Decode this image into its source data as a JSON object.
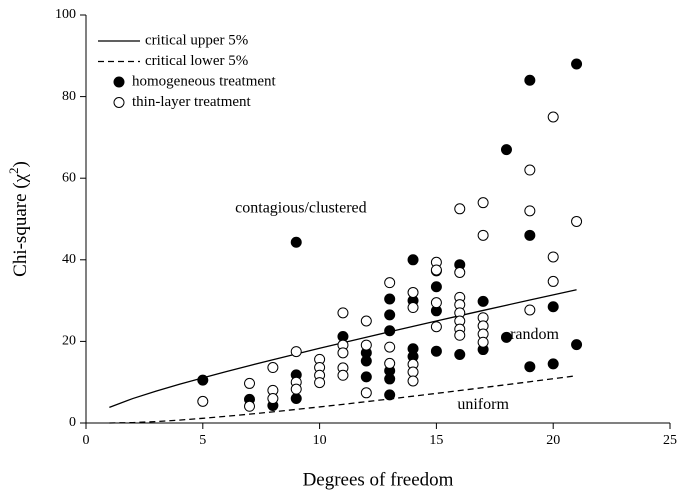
{
  "chart_data": {
    "type": "scatter",
    "xlabel": "Degrees of freedom",
    "ylabel": {
      "text": "Chi-square (χ",
      "sup": "2",
      "end": ")"
    },
    "xlim": [
      0,
      25
    ],
    "xticks": [
      0,
      5,
      10,
      15,
      20,
      25
    ],
    "ylim": [
      0,
      100
    ],
    "yticks": [
      0,
      20,
      40,
      60,
      80,
      100
    ],
    "legend": "upper left",
    "annotations": [
      {
        "text": "contagious/clustered",
        "x": 9.2,
        "y": 52.5
      },
      {
        "text": "random",
        "x": 19.2,
        "y": 21.5
      },
      {
        "text": "uniform",
        "x": 17.0,
        "y": 4.3
      }
    ],
    "series": [
      {
        "name": "critical upper 5%",
        "mark": "line",
        "dash": false,
        "color": "#000000",
        "x": [
          1,
          2,
          3,
          4,
          5,
          6,
          7,
          8,
          9,
          10,
          11,
          12,
          13,
          14,
          15,
          16,
          17,
          18,
          19,
          20,
          21
        ],
        "values": [
          3.84,
          5.99,
          7.81,
          9.49,
          11.07,
          12.59,
          14.07,
          15.51,
          16.92,
          18.31,
          19.68,
          21.03,
          22.36,
          23.68,
          25.0,
          26.3,
          27.59,
          28.87,
          30.14,
          31.41,
          32.67
        ]
      },
      {
        "name": "critical lower 5%",
        "mark": "line",
        "dash": true,
        "color": "#000000",
        "x": [
          1,
          2,
          3,
          4,
          5,
          6,
          7,
          8,
          9,
          10,
          11,
          12,
          13,
          14,
          15,
          16,
          17,
          18,
          19,
          20,
          21
        ],
        "values": [
          0.004,
          0.1,
          0.35,
          0.71,
          1.15,
          1.64,
          2.17,
          2.73,
          3.33,
          3.94,
          4.57,
          5.23,
          5.89,
          6.57,
          7.26,
          7.96,
          8.67,
          9.39,
          10.12,
          10.85,
          11.59
        ]
      },
      {
        "name": "homogeneous treatment",
        "mark": "filled",
        "color": "#000000",
        "x": [
          5,
          7,
          8,
          9,
          9,
          9,
          11,
          12,
          12,
          12,
          13,
          13,
          13,
          13,
          13,
          13,
          14,
          14,
          14,
          14,
          15,
          15,
          15,
          15,
          16,
          16,
          17,
          17,
          18,
          18,
          19,
          19,
          19,
          20,
          20,
          21,
          21
        ],
        "values": [
          10.5,
          5.8,
          4.3,
          44.3,
          11.8,
          6,
          21.2,
          17.2,
          15.2,
          11.3,
          30.4,
          26.5,
          22.6,
          12.8,
          10.8,
          6.9,
          40,
          30,
          18.2,
          16.3,
          37.3,
          33.4,
          27.5,
          17.6,
          38.8,
          16.8,
          29.8,
          18,
          67,
          21,
          84,
          46,
          13.8,
          28.5,
          14.5,
          88,
          19.2
        ]
      },
      {
        "name": "thin-layer treatment",
        "mark": "open",
        "color": "#000000",
        "x": [
          5,
          7,
          7,
          8,
          8,
          8,
          9,
          9,
          9,
          10,
          10,
          10,
          10,
          11,
          11,
          11,
          11,
          11,
          12,
          12,
          12,
          13,
          13,
          13,
          14,
          14,
          14,
          14,
          14,
          15,
          15,
          15,
          15,
          16,
          16,
          16,
          16,
          16,
          16,
          16,
          16,
          17,
          17,
          17,
          17,
          17,
          17,
          19,
          19,
          19,
          20,
          20,
          20,
          21
        ],
        "values": [
          5.3,
          9.7,
          4.1,
          13.6,
          8,
          6,
          17.5,
          10,
          8.3,
          15.6,
          13.6,
          11.7,
          9.9,
          27,
          19.1,
          17.2,
          13.5,
          11.7,
          25,
          19.1,
          7.4,
          34.4,
          18.6,
          14.6,
          32,
          28.3,
          14.4,
          12.5,
          10.3,
          39.4,
          37.5,
          29.5,
          23.6,
          52.5,
          36.9,
          30.8,
          29,
          27,
          25,
          23,
          21.5,
          54,
          46,
          25.8,
          23.8,
          21.8,
          19.8,
          62,
          52,
          27.7,
          75,
          40.7,
          34.7,
          49.4
        ]
      }
    ]
  }
}
